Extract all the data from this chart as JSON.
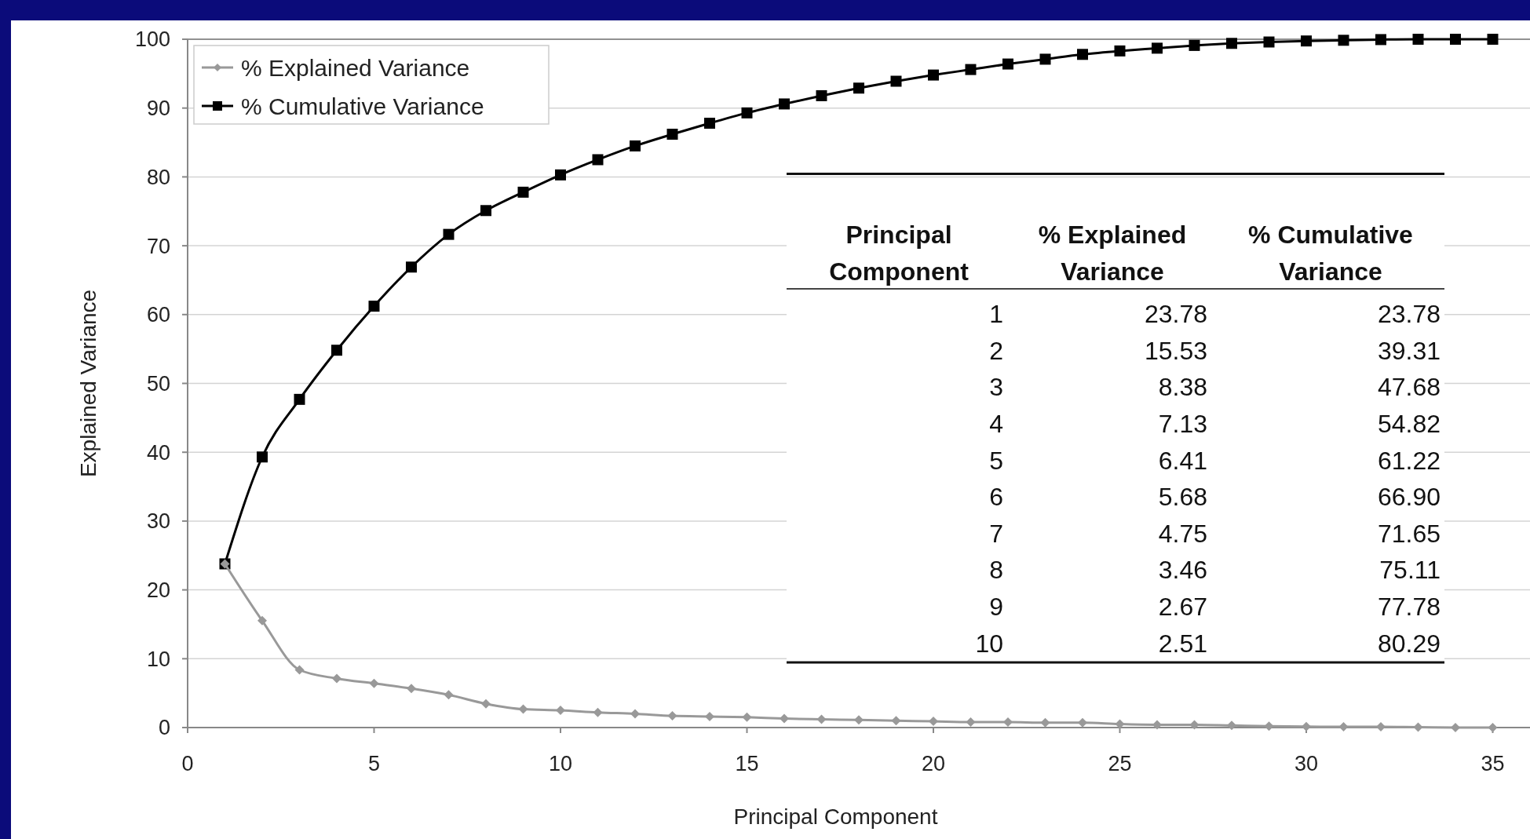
{
  "chart_data": {
    "type": "line",
    "xlabel": "Principal Component",
    "ylabel": "Explained Variance",
    "x": [
      1,
      2,
      3,
      4,
      5,
      6,
      7,
      8,
      9,
      10,
      11,
      12,
      13,
      14,
      15,
      16,
      17,
      18,
      19,
      20,
      21,
      22,
      23,
      24,
      25,
      26,
      27,
      28,
      29,
      30,
      31,
      32,
      33,
      34,
      35
    ],
    "xlim": [
      0,
      36
    ],
    "xticks": [
      0,
      5,
      10,
      15,
      20,
      25,
      30,
      35
    ],
    "ylim": [
      0,
      100
    ],
    "yticks": [
      0,
      10,
      20,
      30,
      40,
      50,
      60,
      70,
      80,
      90,
      100
    ],
    "grid": "y",
    "legend": "top left",
    "line_style": "solid",
    "series": [
      {
        "name": "% Explained Variance",
        "color": "#999999",
        "marker": "diamond",
        "values": [
          23.78,
          15.53,
          8.38,
          7.13,
          6.41,
          5.68,
          4.75,
          3.46,
          2.67,
          2.51,
          2.2,
          2.0,
          1.7,
          1.6,
          1.5,
          1.3,
          1.2,
          1.1,
          1.0,
          0.9,
          0.8,
          0.8,
          0.7,
          0.7,
          0.5,
          0.4,
          0.4,
          0.3,
          0.2,
          0.15,
          0.1,
          0.1,
          0.05,
          0,
          0
        ]
      },
      {
        "name": "% Cumulative Variance",
        "color": "#000000",
        "marker": "square",
        "values": [
          23.78,
          39.31,
          47.68,
          54.82,
          61.22,
          66.9,
          71.65,
          75.11,
          77.78,
          80.29,
          82.5,
          84.5,
          86.2,
          87.8,
          89.3,
          90.6,
          91.8,
          92.9,
          93.9,
          94.8,
          95.6,
          96.4,
          97.1,
          97.8,
          98.3,
          98.7,
          99.1,
          99.4,
          99.6,
          99.75,
          99.85,
          99.95,
          100,
          100,
          100
        ]
      }
    ],
    "annotations": [
      "Principal Component",
      "% Explained Variance",
      "% Cumulative Variance",
      "1",
      "23.78",
      "23.78",
      "2",
      "15.53",
      "39.31",
      "3",
      "8.38",
      "47.68",
      "4",
      "7.13",
      "54.82",
      "5",
      "6.41",
      "61.22",
      "6",
      "5.68",
      "66.90",
      "7",
      "4.75",
      "71.65",
      "8",
      "3.46",
      "75.11",
      "9",
      "2.67",
      "77.78",
      "10",
      "2.51",
      "80.29"
    ]
  }
}
